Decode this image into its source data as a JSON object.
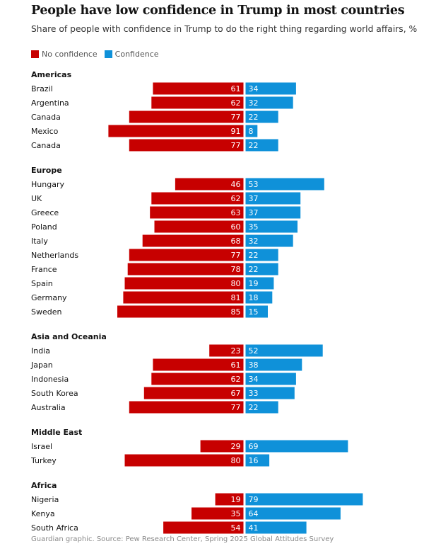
{
  "title": "People have low confidence in Trump in most countries",
  "subtitle": "Share of people with confidence in Trump to do the right thing regarding world affairs, %",
  "legend": [
    {
      "label": "No confidence",
      "color": "#c70000"
    },
    {
      "label": "Confidence",
      "color": "#0f91d9"
    }
  ],
  "source": "Guardian graphic. Source: Pew Research Center, Spring 2025 Global Attitudes Survey",
  "chart_data": {
    "type": "bar",
    "orientation": "horizontal-diverging",
    "groups": [
      {
        "name": "Americas",
        "rows": [
          {
            "country": "Brazil",
            "no_confidence": 61,
            "confidence": 34
          },
          {
            "country": "Argentina",
            "no_confidence": 62,
            "confidence": 32
          },
          {
            "country": "Canada",
            "no_confidence": 77,
            "confidence": 22
          },
          {
            "country": "Mexico",
            "no_confidence": 91,
            "confidence": 8
          },
          {
            "country": "Canada",
            "no_confidence": 77,
            "confidence": 22
          }
        ]
      },
      {
        "name": "Europe",
        "rows": [
          {
            "country": "Hungary",
            "no_confidence": 46,
            "confidence": 53
          },
          {
            "country": "UK",
            "no_confidence": 62,
            "confidence": 37
          },
          {
            "country": "Greece",
            "no_confidence": 63,
            "confidence": 37
          },
          {
            "country": "Poland",
            "no_confidence": 60,
            "confidence": 35
          },
          {
            "country": "Italy",
            "no_confidence": 68,
            "confidence": 32
          },
          {
            "country": "Netherlands",
            "no_confidence": 77,
            "confidence": 22
          },
          {
            "country": "France",
            "no_confidence": 78,
            "confidence": 22
          },
          {
            "country": "Spain",
            "no_confidence": 80,
            "confidence": 19
          },
          {
            "country": "Germany",
            "no_confidence": 81,
            "confidence": 18
          },
          {
            "country": "Sweden",
            "no_confidence": 85,
            "confidence": 15
          }
        ]
      },
      {
        "name": "Asia and Oceania",
        "rows": [
          {
            "country": "India",
            "no_confidence": 23,
            "confidence": 52
          },
          {
            "country": "Japan",
            "no_confidence": 61,
            "confidence": 38
          },
          {
            "country": "Indonesia",
            "no_confidence": 62,
            "confidence": 34
          },
          {
            "country": "South Korea",
            "no_confidence": 67,
            "confidence": 33
          },
          {
            "country": "Australia",
            "no_confidence": 77,
            "confidence": 22
          }
        ]
      },
      {
        "name": "Middle East",
        "rows": [
          {
            "country": "Israel",
            "no_confidence": 29,
            "confidence": 69
          },
          {
            "country": "Turkey",
            "no_confidence": 80,
            "confidence": 16
          }
        ]
      },
      {
        "name": "Africa",
        "rows": [
          {
            "country": "Nigeria",
            "no_confidence": 19,
            "confidence": 79
          },
          {
            "country": "Kenya",
            "no_confidence": 35,
            "confidence": 64
          },
          {
            "country": "South Africa",
            "no_confidence": 54,
            "confidence": 41
          }
        ]
      }
    ]
  }
}
